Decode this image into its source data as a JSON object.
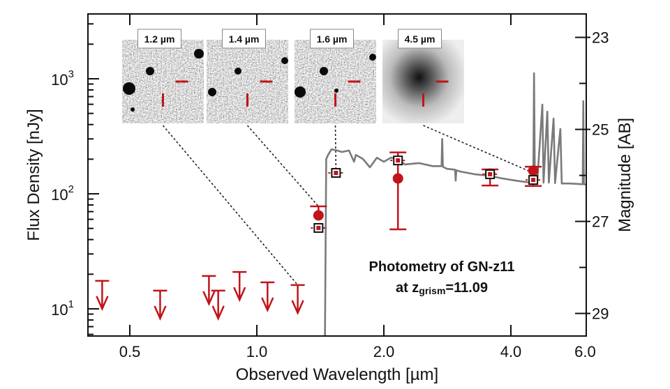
{
  "chart_data": {
    "type": "scatter",
    "title": "",
    "xlabel": "Observed Wavelength [µm]",
    "ylabel": "Flux Density [nJy]",
    "ylabel_right": "Magnitude [AB]",
    "xscale": "log",
    "yscale": "log",
    "xlim": [
      0.4,
      6.03
    ],
    "ylim": [
      5.8,
      3660
    ],
    "x_ticks": [
      {
        "value": 0.5,
        "label": "0.5"
      },
      {
        "value": 1.0,
        "label": "1.0"
      },
      {
        "value": 2.0,
        "label": "2.0"
      },
      {
        "value": 4.0,
        "label": "4.0"
      },
      {
        "value": 6.0,
        "label": "6.0"
      }
    ],
    "y_ticks": [
      {
        "value": 10,
        "base": "10",
        "exp": "1"
      },
      {
        "value": 100,
        "base": "10",
        "exp": "2"
      },
      {
        "value": 1000,
        "base": "10",
        "exp": "3"
      }
    ],
    "mag_zeropoint_nJy": 31.4,
    "right_ticks": [
      {
        "value": 23,
        "label": "23"
      },
      {
        "value": 25,
        "label": "25"
      },
      {
        "value": 27,
        "label": "27"
      },
      {
        "value": 29,
        "label": "29"
      }
    ],
    "right_minor_ticks": [
      24,
      26,
      28
    ],
    "annotation": {
      "line1": "Photometry of GN-z11",
      "line2_prefix": "at z",
      "line2_sub": "grism",
      "line2_suffix": "=11.09"
    },
    "colors": {
      "data": "#c0141b",
      "model": "#7a7a7a",
      "axis": "#111111"
    },
    "series": [
      {
        "name": "upper limits",
        "marker": "down-arrow",
        "points": [
          [
            0.43,
            17.5
          ],
          [
            0.59,
            14.4
          ],
          [
            0.77,
            19.3
          ],
          [
            0.81,
            14.4
          ],
          [
            0.91,
            20.9
          ],
          [
            1.06,
            17.0
          ],
          [
            1.25,
            16.1
          ]
        ]
      },
      {
        "name": "observed photometry",
        "marker": "filled-circle",
        "points": [
          {
            "x": 1.4,
            "y": 64.9,
            "err_hi": 77.8,
            "err_lo": null
          },
          {
            "x": 2.16,
            "y": 136,
            "err_hi": 229,
            "err_lo": 49.1
          },
          {
            "x": 3.57,
            "y": 150,
            "err_hi": 163,
            "err_lo": 118
          },
          {
            "x": 4.52,
            "y": 159,
            "err_hi": 172,
            "err_lo": 117
          }
        ]
      },
      {
        "name": "model photometry",
        "marker": "open-square",
        "points": [
          [
            1.4,
            50.5
          ],
          [
            1.54,
            152
          ],
          [
            2.16,
            195
          ],
          [
            3.57,
            148
          ],
          [
            4.52,
            132
          ]
        ]
      },
      {
        "name": "best-fit SED",
        "type": "line",
        "points": [
          [
            1.45,
            5
          ],
          [
            1.46,
            200
          ],
          [
            1.475,
            218
          ],
          [
            1.503,
            244
          ],
          [
            1.55,
            238
          ],
          [
            1.591,
            231
          ],
          [
            1.653,
            238
          ],
          [
            1.7,
            190
          ],
          [
            1.717,
            218
          ],
          [
            1.784,
            201
          ],
          [
            1.853,
            170
          ],
          [
            1.925,
            206
          ],
          [
            2.0,
            190
          ],
          [
            2.078,
            206
          ],
          [
            2.16,
            201
          ],
          [
            2.242,
            180
          ],
          [
            2.42,
            185
          ],
          [
            2.61,
            174
          ],
          [
            2.74,
            174
          ],
          [
            2.75,
            300
          ],
          [
            2.76,
            172
          ],
          [
            2.82,
            165
          ],
          [
            2.95,
            162
          ],
          [
            2.96,
            130
          ],
          [
            2.97,
            160
          ],
          [
            3.04,
            156
          ],
          [
            3.28,
            148
          ],
          [
            3.54,
            144
          ],
          [
            3.82,
            136
          ],
          [
            4.12,
            130
          ],
          [
            4.45,
            125
          ],
          [
            4.52,
            125
          ],
          [
            4.54,
            1117
          ],
          [
            4.56,
            125
          ],
          [
            4.62,
            128
          ],
          [
            4.75,
            597
          ],
          [
            4.78,
            125
          ],
          [
            4.88,
            519
          ],
          [
            4.92,
            125
          ],
          [
            5.05,
            451
          ],
          [
            5.09,
            124
          ],
          [
            5.24,
            366
          ],
          [
            5.28,
            123
          ],
          [
            5.49,
            123
          ],
          [
            5.76,
            122
          ],
          [
            5.92,
            121
          ],
          [
            5.94,
            640
          ],
          [
            5.96,
            121
          ],
          [
            6.03,
            120
          ]
        ]
      }
    ],
    "insets": [
      {
        "label": "1.2 µm",
        "style": "noise",
        "target": [
          1.25,
          16.1
        ]
      },
      {
        "label": "1.4 µm",
        "style": "noise",
        "target": [
          1.4,
          77.8
        ]
      },
      {
        "label": "1.6 µm",
        "style": "noise",
        "target": [
          1.54,
          160
        ]
      },
      {
        "label": "4.5 µm",
        "style": "blur",
        "target": [
          4.52,
          152
        ]
      }
    ]
  }
}
